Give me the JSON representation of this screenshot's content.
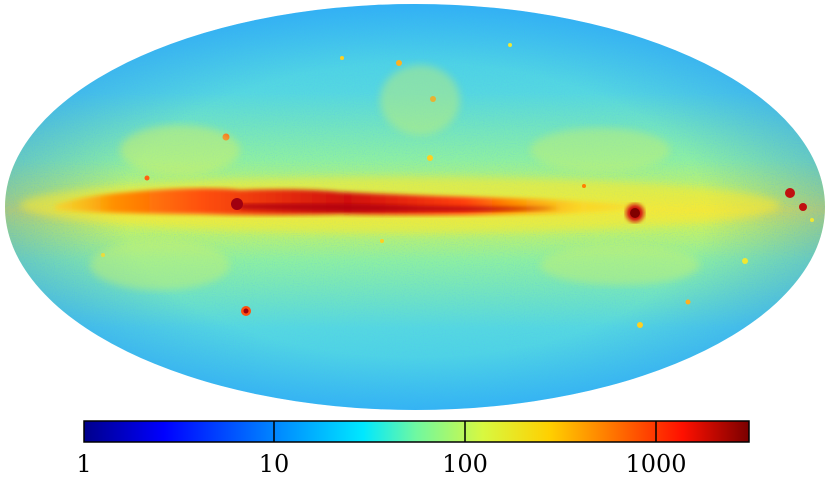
{
  "map": {
    "projection": "mollweide",
    "scale": "log",
    "colormap": "jet",
    "colors": {
      "dark_blue": "#00008b",
      "blue": "#2060ff",
      "cyan": "#30d8f0",
      "green_yellow": "#a8f060",
      "yellow": "#f8e830",
      "orange": "#ff8000",
      "red": "#e01010",
      "dark_red": "#7a0000"
    }
  },
  "colorbar": {
    "ticks": [
      {
        "label": "1",
        "value": 1
      },
      {
        "label": "10",
        "value": 10
      },
      {
        "label": "100",
        "value": 100
      },
      {
        "label": "1000",
        "value": 1000
      }
    ],
    "range": [
      1,
      3000
    ]
  }
}
